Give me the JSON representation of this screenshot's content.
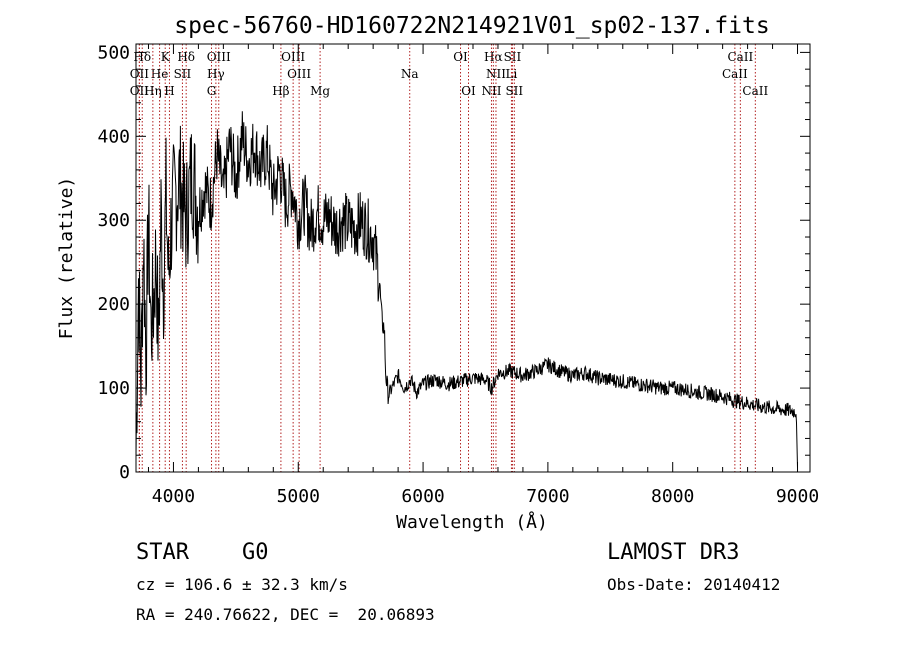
{
  "chart_data": {
    "type": "line",
    "title": "spec-56760-HD160722N214921V01_sp02-137.fits",
    "xlabel": "Wavelength (Å)",
    "ylabel": "Flux (relative)",
    "xlim": [
      3700,
      9100
    ],
    "ylim": [
      0,
      510
    ],
    "x_ticks": [
      4000,
      5000,
      6000,
      7000,
      8000,
      9000
    ],
    "y_ticks": [
      0,
      100,
      200,
      300,
      400,
      500
    ],
    "grid": false,
    "series": [
      {
        "name": "flux",
        "x": [
          3700,
          3720,
          3740,
          3760,
          3780,
          3800,
          3820,
          3840,
          3860,
          3880,
          3900,
          3920,
          3940,
          3960,
          3980,
          4000,
          4050,
          4100,
          4150,
          4200,
          4250,
          4300,
          4350,
          4400,
          4450,
          4500,
          4550,
          4600,
          4650,
          4700,
          4750,
          4800,
          4850,
          4900,
          4950,
          5000,
          5050,
          5100,
          5150,
          5200,
          5250,
          5300,
          5350,
          5400,
          5450,
          5500,
          5550,
          5600,
          5650,
          5670,
          5690,
          5700,
          5720,
          5750,
          5800,
          5850,
          5900,
          5950,
          6000,
          6100,
          6200,
          6300,
          6400,
          6500,
          6550,
          6600,
          6700,
          6800,
          6900,
          7000,
          7100,
          7200,
          7300,
          7400,
          7500,
          7600,
          7700,
          7800,
          7900,
          8000,
          8100,
          8200,
          8300,
          8400,
          8500,
          8600,
          8700,
          8800,
          8900,
          8990,
          9000
        ],
        "y": [
          20,
          230,
          110,
          280,
          140,
          300,
          170,
          200,
          260,
          150,
          310,
          220,
          330,
          230,
          290,
          320,
          350,
          300,
          360,
          310,
          340,
          320,
          380,
          330,
          390,
          350,
          400,
          370,
          390,
          360,
          380,
          330,
          360,
          320,
          340,
          300,
          320,
          290,
          310,
          300,
          305,
          290,
          300,
          295,
          290,
          300,
          290,
          280,
          230,
          180,
          170,
          120,
          90,
          100,
          115,
          100,
          110,
          95,
          105,
          110,
          105,
          108,
          112,
          110,
          100,
          118,
          120,
          115,
          120,
          128,
          120,
          115,
          118,
          112,
          110,
          108,
          105,
          103,
          100,
          100,
          98,
          95,
          93,
          90,
          85,
          82,
          78,
          76,
          74,
          72,
          5
        ]
      }
    ],
    "spectral_lines": [
      {
        "name": "Hδ",
        "wavelength": 3750,
        "row": 1
      },
      {
        "name": "K",
        "wavelength": 3934,
        "row": 1
      },
      {
        "name": "Hδ",
        "wavelength": 4102,
        "row": 1
      },
      {
        "name": "OIII",
        "wavelength": 4363,
        "row": 1
      },
      {
        "name": "OIII",
        "wavelength": 4959,
        "row": 1
      },
      {
        "name": "OI",
        "wavelength": 6300,
        "row": 1
      },
      {
        "name": "Hα",
        "wavelength": 6563,
        "row": 1
      },
      {
        "name": "SII",
        "wavelength": 6716,
        "row": 1
      },
      {
        "name": "CaII",
        "wavelength": 8542,
        "row": 1
      },
      {
        "name": "OII",
        "wavelength": 3727,
        "row": 2
      },
      {
        "name": "He",
        "wavelength": 3889,
        "row": 2
      },
      {
        "name": "SII",
        "wavelength": 4072,
        "row": 2
      },
      {
        "name": "Hγ",
        "wavelength": 4340,
        "row": 2
      },
      {
        "name": "OIII",
        "wavelength": 5007,
        "row": 2
      },
      {
        "name": "Na",
        "wavelength": 5893,
        "row": 2
      },
      {
        "name": "NII",
        "wavelength": 6584,
        "row": 2
      },
      {
        "name": "Li",
        "wavelength": 6708,
        "row": 2
      },
      {
        "name": "CaII",
        "wavelength": 8498,
        "row": 2
      },
      {
        "name": "OII",
        "wavelength": 3727,
        "row": 3
      },
      {
        "name": "Hη",
        "wavelength": 3835,
        "row": 3
      },
      {
        "name": "H",
        "wavelength": 3968,
        "row": 3
      },
      {
        "name": "G",
        "wavelength": 4305,
        "row": 3
      },
      {
        "name": "Hβ",
        "wavelength": 4861,
        "row": 3
      },
      {
        "name": "Mg",
        "wavelength": 5175,
        "row": 3
      },
      {
        "name": "OI",
        "wavelength": 6364,
        "row": 3
      },
      {
        "name": "NII",
        "wavelength": 6548,
        "row": 3
      },
      {
        "name": "SII",
        "wavelength": 6731,
        "row": 3
      },
      {
        "name": "CaII",
        "wavelength": 8662,
        "row": 3
      }
    ]
  },
  "info": {
    "class": "STAR",
    "subclass": "G0",
    "survey": "LAMOST DR3",
    "cz": "cz = 106.6 ± 32.3 km/s",
    "obs_date": "Obs-Date: 20140412",
    "coords": "RA = 240.76622, DEC =  20.06893"
  }
}
